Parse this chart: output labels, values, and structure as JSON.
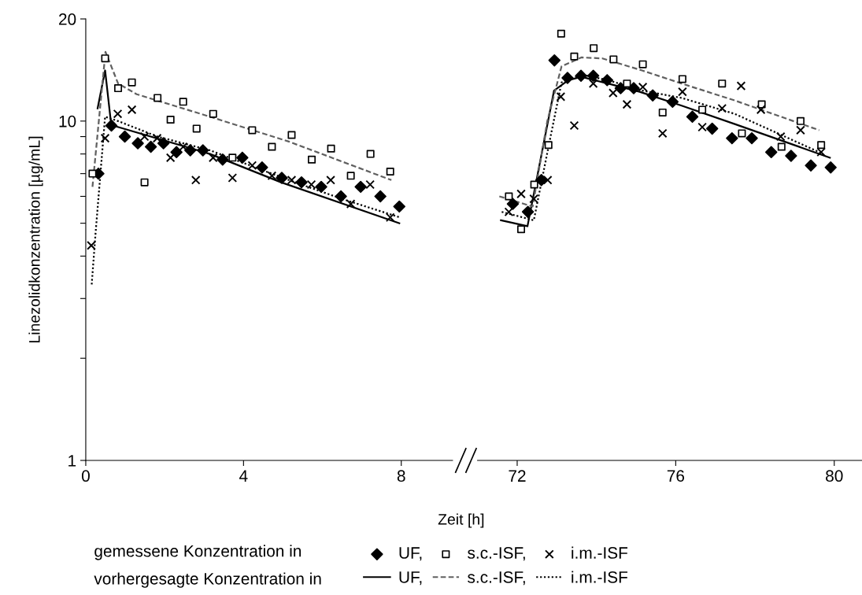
{
  "chart_data": [
    {
      "type": "scatter",
      "xlabel": "Zeit [h]",
      "ylabel": "Linezolidkonzentration [µg/mL]",
      "log": "y",
      "legend": "bottom",
      "grid": false,
      "xlim": [
        0,
        9.3
      ],
      "xticks": [
        0,
        4,
        8
      ],
      "ylim": [
        1,
        20
      ],
      "yticks": [
        1,
        {
          "value": 2,
          "label": null
        },
        {
          "value": 3,
          "label": null
        },
        {
          "value": 4,
          "label": null
        },
        {
          "value": 5,
          "label": null
        },
        {
          "value": 6,
          "label": null
        },
        {
          "value": 7,
          "label": null
        },
        {
          "value": 8,
          "label": null
        },
        {
          "value": 9,
          "label": null
        },
        10,
        20
      ],
      "annotations": [
        "gemessene Konzentration in",
        "vorhergesagte Konzentration in"
      ],
      "series": [
        {
          "name": "UF,",
          "marker": "diamond",
          "color": "#000000",
          "x": [
            0.32,
            0.65,
            0.99,
            1.32,
            1.65,
            1.97,
            2.3,
            2.65,
            2.97,
            3.47,
            3.97,
            4.47,
            4.97,
            5.47,
            5.97,
            6.47,
            6.97,
            7.47,
            7.95
          ],
          "values": [
            7.0,
            9.7,
            9.0,
            8.6,
            8.4,
            8.6,
            8.1,
            8.2,
            8.2,
            7.7,
            7.8,
            7.3,
            6.8,
            6.6,
            6.4,
            6.0,
            6.4,
            6.0,
            5.6
          ]
        },
        {
          "name": "s.c.-ISF,",
          "marker": "square",
          "color": "#000000",
          "x": [
            0.17,
            0.49,
            0.82,
            1.17,
            1.49,
            1.82,
            2.15,
            2.47,
            2.81,
            3.23,
            3.72,
            4.22,
            4.72,
            5.22,
            5.73,
            6.22,
            6.72,
            7.22,
            7.72
          ],
          "values": [
            7.0,
            15.3,
            12.5,
            13.0,
            6.6,
            11.7,
            10.1,
            11.4,
            9.5,
            10.5,
            7.8,
            9.4,
            8.4,
            9.1,
            7.7,
            8.3,
            6.9,
            8.0,
            7.1
          ]
        },
        {
          "name": "i.m.-ISF",
          "marker": "cross",
          "color": "#000000",
          "x": [
            0.14,
            0.49,
            0.81,
            1.17,
            1.49,
            1.81,
            2.15,
            2.47,
            2.79,
            3.23,
            3.72,
            4.22,
            4.72,
            5.22,
            5.72,
            6.21,
            6.72,
            7.21,
            7.72
          ],
          "values": [
            4.3,
            8.9,
            10.5,
            10.8,
            9.0,
            8.9,
            7.8,
            8.4,
            6.7,
            7.8,
            6.8,
            7.4,
            6.9,
            6.7,
            6.5,
            6.7,
            5.7,
            6.5,
            5.2
          ]
        },
        {
          "name": "UF,",
          "type": "line",
          "marker": "none",
          "line_style": "solid",
          "color": "#000000",
          "x": [
            0.3,
            0.49,
            0.63,
            0.69,
            3.15,
            4.95,
            7.95
          ],
          "values": [
            10.9,
            14.1,
            10.1,
            9.7,
            8.0,
            6.6,
            5.0
          ]
        },
        {
          "name": "s.c.-ISF,",
          "type": "line",
          "marker": "none",
          "line_style": "dashed",
          "color": "#606060",
          "x": [
            0.17,
            0.5,
            0.82,
            1.29,
            3.15,
            5.15,
            7.75
          ],
          "values": [
            6.4,
            16.0,
            12.9,
            12.0,
            10.3,
            8.7,
            6.7
          ]
        },
        {
          "name": "i.m.-ISF",
          "type": "line",
          "marker": "none",
          "line_style": "dotted",
          "color": "#000000",
          "x": [
            0.15,
            0.25,
            0.49,
            0.82,
            1.82,
            3.15,
            5.15,
            6.49,
            7.97
          ],
          "values": [
            3.3,
            4.7,
            10.3,
            10.0,
            9.0,
            8.2,
            6.7,
            5.9,
            5.2
          ]
        }
      ]
    },
    {
      "type": "scatter",
      "log": "y",
      "tick_labels": "x",
      "grid": false,
      "xlim": [
        71,
        80.7
      ],
      "xticks": [
        72,
        76,
        80
      ],
      "ylim": [
        1,
        20
      ],
      "series": [
        {
          "marker": "diamond",
          "color": "#000000",
          "x": [
            71.89,
            72.27,
            72.61,
            72.94,
            73.27,
            73.61,
            73.92,
            74.27,
            74.61,
            74.94,
            75.42,
            75.92,
            76.42,
            76.92,
            77.42,
            77.92,
            78.41,
            78.91,
            79.41,
            79.91
          ],
          "values": [
            5.7,
            5.4,
            6.7,
            15.1,
            13.4,
            13.6,
            13.6,
            13.2,
            12.5,
            12.5,
            11.9,
            11.4,
            10.3,
            9.5,
            8.9,
            8.9,
            8.1,
            7.9,
            7.4,
            7.3
          ]
        },
        {
          "marker": "square",
          "color": "#000000",
          "x": [
            71.79,
            72.1,
            72.43,
            72.79,
            73.11,
            73.44,
            73.93,
            74.43,
            74.77,
            75.17,
            75.67,
            76.17,
            76.67,
            77.17,
            77.67,
            78.17,
            78.67,
            79.15,
            79.67
          ],
          "values": [
            6.0,
            4.8,
            6.5,
            8.5,
            18.1,
            15.5,
            16.4,
            15.2,
            12.9,
            14.7,
            10.6,
            13.3,
            10.8,
            12.9,
            9.2,
            11.2,
            8.4,
            10.0,
            8.5
          ]
        },
        {
          "marker": "cross",
          "color": "#000000",
          "x": [
            71.79,
            72.1,
            72.42,
            72.77,
            73.1,
            73.44,
            73.92,
            74.42,
            74.77,
            75.17,
            75.67,
            76.17,
            76.67,
            77.17,
            77.65,
            78.15,
            78.65,
            79.15,
            79.67
          ],
          "values": [
            5.4,
            6.1,
            5.9,
            6.7,
            11.8,
            9.7,
            12.9,
            12.1,
            11.2,
            12.6,
            9.2,
            12.2,
            9.6,
            10.9,
            12.7,
            10.8,
            9.0,
            9.4,
            8.1
          ]
        },
        {
          "type": "line",
          "marker": "none",
          "line_style": "solid",
          "color": "#000000",
          "x": [
            71.59,
            72.26,
            72.93,
            73.29,
            73.62,
            74.29,
            75.09,
            76.15,
            77.49,
            79.89
          ],
          "values": [
            5.1,
            4.9,
            12.3,
            13.2,
            13.5,
            12.9,
            12.2,
            11.1,
            9.8,
            7.8
          ]
        },
        {
          "type": "line",
          "marker": "none",
          "line_style": "dashed",
          "color": "#606060",
          "x": [
            71.55,
            72.39,
            72.76,
            73.12,
            73.62,
            74.15,
            75.15,
            76.15,
            77.49,
            79.62
          ],
          "values": [
            6.0,
            5.6,
            10.0,
            14.5,
            15.4,
            15.3,
            14.1,
            12.9,
            11.5,
            9.4
          ]
        },
        {
          "type": "line",
          "marker": "none",
          "line_style": "dotted",
          "color": "#000000",
          "x": [
            71.61,
            72.42,
            72.79,
            73.12,
            73.62,
            74.29,
            75.15,
            76.15,
            77.49,
            79.72
          ],
          "values": [
            5.4,
            5.1,
            8.4,
            13.0,
            13.7,
            13.2,
            12.3,
            11.7,
            10.5,
            8.0
          ]
        }
      ]
    }
  ]
}
